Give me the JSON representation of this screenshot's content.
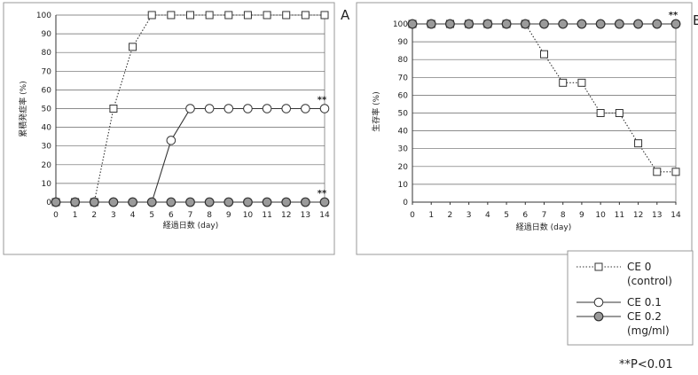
{
  "chart_data": [
    {
      "panel": "A",
      "type": "line",
      "ylabel": "累積発症率 (%)",
      "xlabel": "経過日数 (day)",
      "x": [
        0,
        1,
        2,
        3,
        4,
        5,
        6,
        7,
        8,
        9,
        10,
        11,
        12,
        13,
        14
      ],
      "xlim": [
        0,
        14
      ],
      "ylim": [
        0,
        100
      ],
      "yticks": [
        0,
        10,
        20,
        30,
        40,
        50,
        60,
        70,
        80,
        90,
        100
      ],
      "grid": true,
      "series": [
        {
          "name": "CE 0 (control)",
          "marker": "open-square",
          "line": "dotted",
          "values": [
            0,
            0,
            0,
            50,
            83,
            100,
            100,
            100,
            100,
            100,
            100,
            100,
            100,
            100,
            100
          ]
        },
        {
          "name": "CE 0.1",
          "marker": "open-circle",
          "line": "solid",
          "values": [
            0,
            0,
            0,
            0,
            0,
            0,
            33,
            50,
            50,
            50,
            50,
            50,
            50,
            50,
            50
          ]
        },
        {
          "name": "CE 0.2 (mg/ml)",
          "marker": "filled-circle",
          "line": "solid",
          "values": [
            0,
            0,
            0,
            0,
            0,
            0,
            0,
            0,
            0,
            0,
            0,
            0,
            0,
            0,
            0
          ]
        }
      ],
      "annotations": [
        {
          "text": "**",
          "series": 1,
          "x": 14
        },
        {
          "text": "**",
          "series": 2,
          "x": 14
        }
      ]
    },
    {
      "panel": "B",
      "type": "line",
      "ylabel": "生存率 (%)",
      "xlabel": "経過日数 (day)",
      "x": [
        0,
        1,
        2,
        3,
        4,
        5,
        6,
        7,
        8,
        9,
        10,
        11,
        12,
        13,
        14
      ],
      "xlim": [
        0,
        14
      ],
      "ylim": [
        0,
        100
      ],
      "yticks": [
        0,
        10,
        20,
        30,
        40,
        50,
        60,
        70,
        80,
        90,
        100
      ],
      "grid": true,
      "series": [
        {
          "name": "CE 0 (control)",
          "marker": "open-square",
          "line": "dotted",
          "values": [
            100,
            100,
            100,
            100,
            100,
            100,
            100,
            83,
            67,
            67,
            50,
            50,
            33,
            17,
            17
          ]
        },
        {
          "name": "CE 0.1",
          "marker": "open-circle",
          "line": "solid",
          "values": [
            100,
            100,
            100,
            100,
            100,
            100,
            100,
            100,
            100,
            100,
            100,
            100,
            100,
            100,
            100
          ]
        },
        {
          "name": "CE 0.2 (mg/ml)",
          "marker": "filled-circle",
          "line": "solid",
          "values": [
            100,
            100,
            100,
            100,
            100,
            100,
            100,
            100,
            100,
            100,
            100,
            100,
            100,
            100,
            100
          ]
        }
      ],
      "annotations": [
        {
          "text": "**",
          "series": 2,
          "x": 14
        }
      ]
    }
  ],
  "legend": {
    "entries": [
      {
        "marker": "open-square",
        "line": "dotted",
        "lines": [
          "CE 0",
          "(control)"
        ]
      },
      {
        "marker": "open-circle",
        "line": "solid",
        "lines": [
          "CE 0.1"
        ]
      },
      {
        "marker": "filled-circle",
        "line": "solid",
        "lines": [
          "CE 0.2",
          "(mg/ml)"
        ]
      }
    ]
  },
  "footnote": "**P<0.01",
  "colors": {
    "line": "#333333",
    "grid": "#666666",
    "marker_fill": "#9a9a9a",
    "frame": "#999999"
  }
}
